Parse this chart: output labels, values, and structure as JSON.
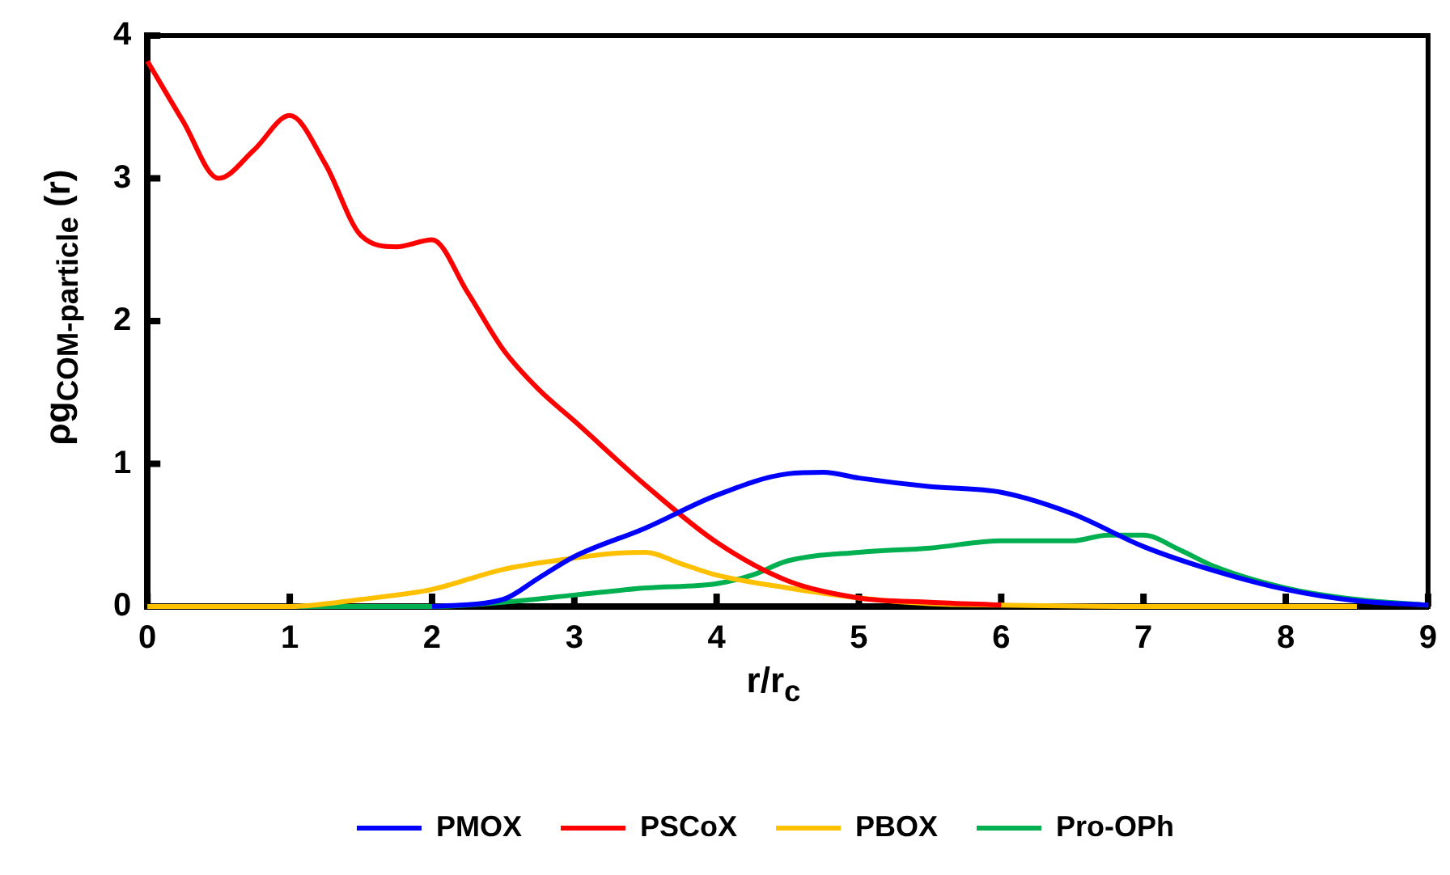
{
  "chart_data": {
    "type": "line",
    "xlabel": "r/r$_{c}$",
    "ylabel": "ρg$_{COM-particle}$ (r)",
    "xlim": [
      0,
      9
    ],
    "xticks": [
      0,
      1,
      2,
      3,
      4,
      5,
      6,
      7,
      8,
      9
    ],
    "ylim": [
      0,
      4
    ],
    "yticks": [
      0,
      1,
      2,
      3,
      4
    ],
    "grid": false,
    "legend": "bottom",
    "marker": "none",
    "line_style": "solid",
    "series": [
      {
        "name": "PMOX",
        "color": "#0000ff",
        "x": [
          2,
          2.5,
          2.75,
          3,
          3.5,
          4,
          4.5,
          4.75,
          5,
          5.5,
          6,
          6.5,
          7,
          7.5,
          8,
          8.5,
          9
        ],
        "values": [
          0,
          0.05,
          0.2,
          0.35,
          0.55,
          0.78,
          0.93,
          0.94,
          0.9,
          0.84,
          0.8,
          0.65,
          0.42,
          0.25,
          0.12,
          0.04,
          0.01
        ]
      },
      {
        "name": "PSCoX",
        "color": "#ff0000",
        "x": [
          0,
          0.25,
          0.5,
          0.75,
          1,
          1.25,
          1.5,
          1.75,
          2,
          2.25,
          2.5,
          2.75,
          3,
          3.5,
          4,
          4.5,
          5,
          5.5,
          6
        ],
        "values": [
          3.82,
          3.4,
          3,
          3.2,
          3.44,
          3.1,
          2.6,
          2.52,
          2.57,
          2.2,
          1.8,
          1.52,
          1.3,
          0.85,
          0.45,
          0.18,
          0.06,
          0.03,
          0.01
        ]
      },
      {
        "name": "PBOX",
        "color": "#ffc000",
        "x": [
          0,
          1,
          1.5,
          2,
          2.5,
          3,
          3.25,
          3.5,
          3.75,
          4,
          4.5,
          5,
          5.5,
          6,
          7,
          8.5
        ],
        "values": [
          0,
          0,
          0.05,
          0.12,
          0.26,
          0.34,
          0.37,
          0.38,
          0.3,
          0.22,
          0.13,
          0.06,
          0.02,
          0.01,
          0,
          0
        ]
      },
      {
        "name": "Pro-OPh",
        "color": "#00b050",
        "x": [
          0,
          1,
          2,
          2.5,
          3,
          3.5,
          4,
          4.25,
          4.5,
          5,
          5.5,
          6,
          6.5,
          6.75,
          7,
          7.25,
          7.5,
          8,
          8.5,
          9
        ],
        "values": [
          0,
          0,
          0,
          0.03,
          0.08,
          0.13,
          0.16,
          0.22,
          0.32,
          0.38,
          0.41,
          0.46,
          0.46,
          0.5,
          0.5,
          0.4,
          0.28,
          0.13,
          0.05,
          0.01
        ]
      }
    ]
  }
}
